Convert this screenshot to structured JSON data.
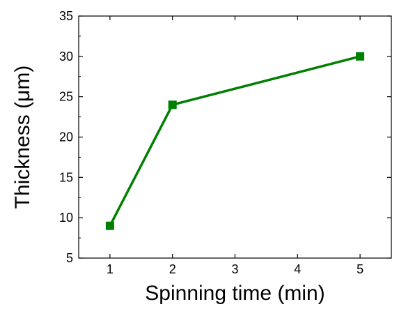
{
  "chart_data": {
    "type": "line",
    "title": "",
    "xlabel": "Spinning time (min)",
    "ylabel": "Thickness (μm)",
    "xlim": [
      0.5,
      5.5
    ],
    "ylim": [
      5,
      35
    ],
    "xticks": [
      1,
      2,
      3,
      4,
      5
    ],
    "yticks": [
      5,
      10,
      15,
      20,
      25,
      30,
      35
    ],
    "grid": false,
    "legend": "none",
    "series": [
      {
        "x": [
          1,
          2,
          5
        ],
        "y": [
          9,
          24,
          30
        ],
        "color": "#008000",
        "marker": "square"
      }
    ]
  }
}
